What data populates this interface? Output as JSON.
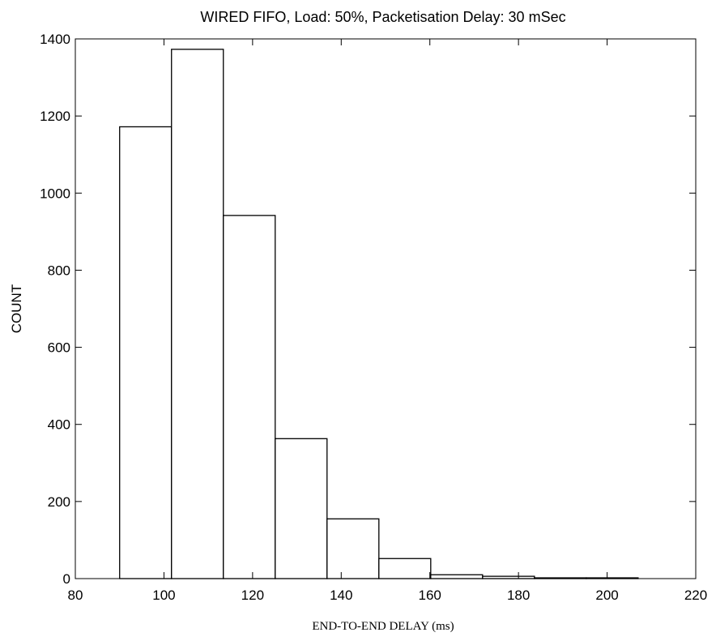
{
  "chart_data": {
    "type": "bar",
    "title": "WIRED FIFO,  Load: 50%,  Packetisation Delay: 30 mSec",
    "xlabel": "END-TO-END DELAY (ms)",
    "ylabel": "COUNT",
    "xlim": [
      80,
      220
    ],
    "ylim": [
      0,
      1400
    ],
    "xticks": [
      "80",
      "100",
      "120",
      "140",
      "160",
      "180",
      "200",
      "220"
    ],
    "yticks": [
      "0",
      "200",
      "400",
      "600",
      "800",
      "1000",
      "1200",
      "1400"
    ],
    "grid": false,
    "bins": [
      {
        "x0": 90.0,
        "x1": 101.7,
        "value": 1172
      },
      {
        "x0": 101.7,
        "x1": 113.4,
        "value": 1373
      },
      {
        "x0": 113.4,
        "x1": 125.1,
        "value": 942
      },
      {
        "x0": 125.1,
        "x1": 136.8,
        "value": 363
      },
      {
        "x0": 136.8,
        "x1": 148.5,
        "value": 155
      },
      {
        "x0": 148.5,
        "x1": 160.2,
        "value": 52
      },
      {
        "x0": 160.2,
        "x1": 171.9,
        "value": 10
      },
      {
        "x0": 171.9,
        "x1": 183.6,
        "value": 6
      },
      {
        "x0": 183.6,
        "x1": 195.3,
        "value": 2
      },
      {
        "x0": 195.3,
        "x1": 207.0,
        "value": 2
      }
    ],
    "colors": {
      "bar_fill": "#ffffff",
      "bar_edge": "#000000",
      "axis": "#000000"
    }
  }
}
